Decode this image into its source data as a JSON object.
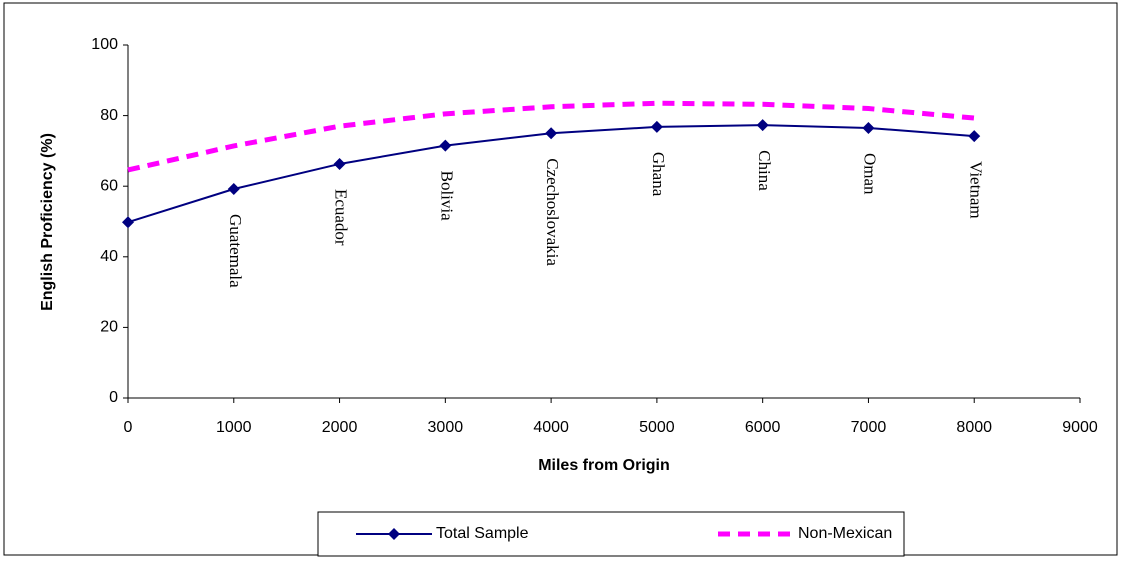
{
  "chart_data": {
    "type": "line",
    "x_label": "Miles from Origin",
    "y_label": "English Proficiency (%)",
    "x": [
      0,
      1000,
      2000,
      3000,
      4000,
      5000,
      6000,
      7000,
      8000
    ],
    "series": [
      {
        "name": "Total Sample",
        "color": "#000080",
        "dashed": false,
        "markers": true,
        "values": [
          49.8,
          59.2,
          66.3,
          71.5,
          75,
          76.8,
          77.3,
          76.5,
          74.2
        ]
      },
      {
        "name": "Non-Mexican",
        "color": "#ff00ff",
        "dashed": true,
        "markers": false,
        "values": [
          64.6,
          71.4,
          77,
          80.5,
          82.5,
          83.5,
          83.2,
          82,
          79.3
        ]
      }
    ],
    "point_labels": [
      null,
      "Guatemala",
      "Ecuador",
      "Bolivia",
      "Czechoslovakia",
      "Ghana",
      "China",
      "Oman",
      "Vietnam"
    ],
    "xlim": [
      0,
      9000
    ],
    "xticks": [
      0,
      1000,
      2000,
      3000,
      4000,
      5000,
      6000,
      7000,
      8000,
      9000
    ],
    "ylim": [
      0,
      100
    ],
    "yticks": [
      0,
      20,
      40,
      60,
      80,
      100
    ],
    "grid": false,
    "legend": "bottom"
  }
}
